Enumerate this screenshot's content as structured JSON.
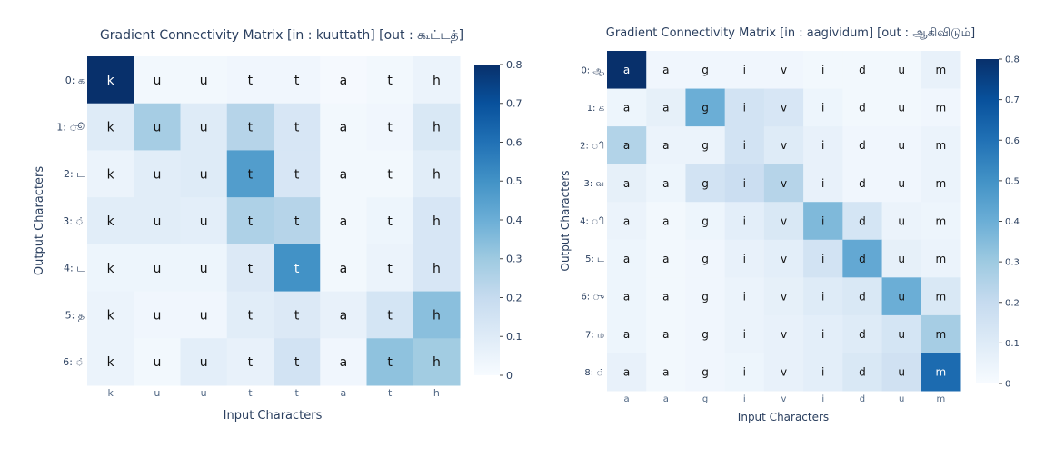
{
  "chart_data": [
    {
      "type": "heatmap",
      "title": "Gradient Connectivity Matrix [in : kuuttath] [out : கூட்டத்]",
      "xlabel": "Input Characters",
      "ylabel": "Output Characters",
      "x": [
        "k",
        "u",
        "u",
        "t",
        "t",
        "a",
        "t",
        "h"
      ],
      "y": [
        "0: க",
        "1: ூ",
        "2: ட",
        "3: ்",
        "4: ட",
        "5: த",
        "6: ்"
      ],
      "colorbar": {
        "range": [
          0,
          0.8
        ],
        "ticks": [
          "0",
          "0.1",
          "0.2",
          "0.3",
          "0.4",
          "0.5",
          "0.6",
          "0.7",
          "0.8"
        ]
      },
      "colorscale": [
        "#f7fbff",
        "#deebf7",
        "#c6dbef",
        "#9ecae1",
        "#6baed6",
        "#4292c6",
        "#2171b5",
        "#08519c",
        "#08306b"
      ],
      "z": [
        [
          0.8,
          0.02,
          0.02,
          0.03,
          0.03,
          0.01,
          0.02,
          0.05
        ],
        [
          0.1,
          0.28,
          0.1,
          0.24,
          0.13,
          0.02,
          0.03,
          0.12
        ],
        [
          0.05,
          0.09,
          0.1,
          0.46,
          0.13,
          0.02,
          0.02,
          0.09
        ],
        [
          0.09,
          0.09,
          0.08,
          0.26,
          0.24,
          0.02,
          0.04,
          0.13
        ],
        [
          0.04,
          0.04,
          0.04,
          0.11,
          0.5,
          0.02,
          0.05,
          0.13
        ],
        [
          0.05,
          0.03,
          0.03,
          0.09,
          0.11,
          0.06,
          0.14,
          0.34
        ],
        [
          0.05,
          0.02,
          0.08,
          0.06,
          0.15,
          0.03,
          0.33,
          0.29
        ]
      ]
    },
    {
      "type": "heatmap",
      "title": "Gradient Connectivity Matrix [in : aagividum] [out : ஆகிவிடும்]",
      "xlabel": "Input Characters",
      "ylabel": "Output Characters",
      "x": [
        "a",
        "a",
        "g",
        "i",
        "v",
        "i",
        "d",
        "u",
        "m"
      ],
      "y": [
        "0: ஆ",
        "1: க",
        "2: ி",
        "3: வ",
        "4: ி",
        "5: ட",
        "6: ு",
        "7: ம",
        "8: ்"
      ],
      "colorbar": {
        "range": [
          0,
          0.8
        ],
        "ticks": [
          "0",
          "0.1",
          "0.2",
          "0.3",
          "0.4",
          "0.5",
          "0.6",
          "0.7",
          "0.8"
        ]
      },
      "colorscale": [
        "#f7fbff",
        "#deebf7",
        "#c6dbef",
        "#9ecae1",
        "#6baed6",
        "#4292c6",
        "#2171b5",
        "#08519c",
        "#08306b"
      ],
      "z": [
        [
          0.8,
          0.03,
          0.03,
          0.03,
          0.03,
          0.02,
          0.02,
          0.02,
          0.06
        ],
        [
          0.04,
          0.07,
          0.4,
          0.15,
          0.13,
          0.04,
          0.02,
          0.02,
          0.03
        ],
        [
          0.25,
          0.05,
          0.05,
          0.15,
          0.1,
          0.06,
          0.03,
          0.03,
          0.05
        ],
        [
          0.07,
          0.04,
          0.15,
          0.18,
          0.24,
          0.06,
          0.03,
          0.03,
          0.05
        ],
        [
          0.05,
          0.02,
          0.04,
          0.08,
          0.12,
          0.36,
          0.14,
          0.05,
          0.04
        ],
        [
          0.04,
          0.02,
          0.03,
          0.06,
          0.08,
          0.15,
          0.42,
          0.07,
          0.05
        ],
        [
          0.04,
          0.02,
          0.03,
          0.05,
          0.07,
          0.1,
          0.12,
          0.4,
          0.12
        ],
        [
          0.04,
          0.02,
          0.03,
          0.05,
          0.06,
          0.08,
          0.1,
          0.14,
          0.28
        ],
        [
          0.06,
          0.02,
          0.03,
          0.04,
          0.06,
          0.08,
          0.12,
          0.16,
          0.62
        ]
      ]
    }
  ]
}
